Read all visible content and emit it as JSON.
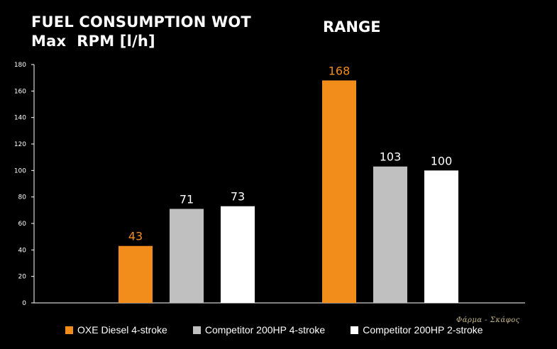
{
  "header": {
    "title_line1": "FUEL CONSUMPTION WOT",
    "title_line2": "Max  RPM [l/h]",
    "range_title": "RANGE"
  },
  "chart_data": {
    "type": "bar",
    "ylim": [
      0,
      180
    ],
    "yticks": [
      "0",
      "20",
      "40",
      "60",
      "80",
      "100",
      "120",
      "140",
      "160",
      "180"
    ],
    "grid": false,
    "legend_position": "bottom",
    "groups": [
      {
        "name": "FUEL CONSUMPTION WOT Max  RPM [l/h]",
        "values": [
          43,
          71,
          73
        ]
      },
      {
        "name": "RANGE",
        "values": [
          168,
          103,
          100
        ]
      }
    ],
    "series": [
      {
        "name": "OXE Diesel 4-stroke",
        "color": "#f28c1a",
        "label_color": "#f28c1a"
      },
      {
        "name": "Competitor 200HP 4-stroke",
        "color": "#c0c0c0",
        "label_color": "#ffffff"
      },
      {
        "name": "Competitor 200HP 2-stroke",
        "color": "#ffffff",
        "label_color": "#ffffff"
      }
    ]
  },
  "watermark": "Φάρμα - Σκάφος"
}
